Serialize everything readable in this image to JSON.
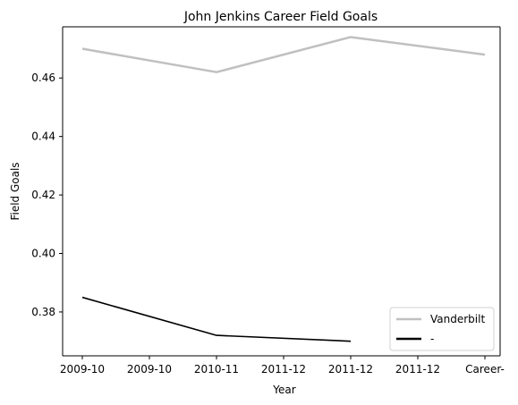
{
  "chart_data": {
    "type": "line",
    "title": "John Jenkins  Career Field Goals",
    "xlabel": "Year",
    "ylabel": "Field Goals",
    "categories": [
      "2009-10",
      "2009-10",
      "2010-11",
      "2011-12",
      "2011-12",
      "2011-12",
      "Career-"
    ],
    "ylim": [
      0.365,
      0.4775
    ],
    "yticks": [
      "0.38",
      "0.40",
      "0.42",
      "0.44",
      "0.46"
    ],
    "ytick_values": [
      0.38,
      0.4,
      0.42,
      0.44,
      0.46
    ],
    "legend_position": "lower-right",
    "grid": false,
    "series": [
      {
        "name": "Vanderbilt",
        "color": "#c0c0c0",
        "points": [
          [
            0,
            0.47
          ],
          [
            2,
            0.462
          ],
          [
            4,
            0.474
          ],
          [
            6,
            0.468
          ]
        ]
      },
      {
        "name": "-",
        "color": "#000000",
        "points": [
          [
            0,
            0.385
          ],
          [
            2,
            0.372
          ],
          [
            4,
            0.37
          ]
        ]
      }
    ]
  }
}
